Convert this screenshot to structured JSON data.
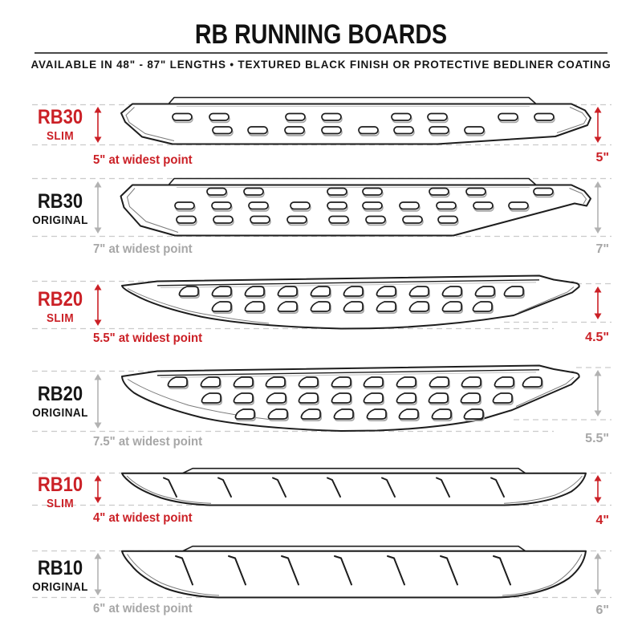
{
  "page": {
    "title": "RB RUNNING BOARDS",
    "subtitle": "AVAILABLE IN 48\" - 87\" LENGTHS   •   TEXTURED BLACK FINISH OR PROTECTIVE BEDLINER COATING"
  },
  "colors": {
    "accent_red": "#cb2026",
    "measure_gray": "#a7a7a7",
    "ink": "#1d1d1d"
  },
  "models": [
    {
      "name": "RB30",
      "variant": "SLIM",
      "width_at_widest": "5\" at widest point",
      "end_width": "5\""
    },
    {
      "name": "RB30",
      "variant": "ORIGINAL",
      "width_at_widest": "7\" at widest point",
      "end_width": "7\""
    },
    {
      "name": "RB20",
      "variant": "SLIM",
      "width_at_widest": "5.5\" at widest point",
      "end_width": "4.5\""
    },
    {
      "name": "RB20",
      "variant": "ORIGINAL",
      "width_at_widest": "7.5\" at widest point",
      "end_width": "5.5\""
    },
    {
      "name": "RB10",
      "variant": "SLIM",
      "width_at_widest": "4\" at widest point",
      "end_width": "4\""
    },
    {
      "name": "RB10",
      "variant": "ORIGINAL",
      "width_at_widest": "6\" at widest point",
      "end_width": "6\""
    }
  ]
}
